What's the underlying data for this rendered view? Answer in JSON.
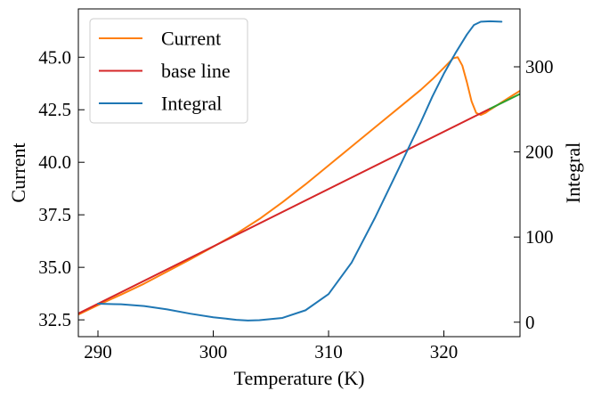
{
  "chart_data": {
    "type": "line",
    "xlabel": "Temperature (K)",
    "ylabel_left": "Current",
    "ylabel_right": "Integral",
    "xlim": [
      288.3,
      326.6
    ],
    "ylim_left": [
      31.7,
      47.3
    ],
    "ylim_right": [
      -17,
      368
    ],
    "x_ticks": [
      290,
      300,
      310,
      320
    ],
    "y_ticks_left": [
      32.5,
      35.0,
      37.5,
      40.0,
      42.5,
      45.0
    ],
    "y_ticks_right": [
      0,
      100,
      200,
      300
    ],
    "x_tick_labels": [
      "290",
      "300",
      "310",
      "320"
    ],
    "y_tick_labels_left": [
      "32.5",
      "35.0",
      "37.5",
      "40.0",
      "42.5",
      "45.0"
    ],
    "y_tick_labels_right": [
      "0",
      "100",
      "200",
      "300"
    ],
    "grid": false,
    "legend_position": "top-left",
    "series": [
      {
        "name": "Current",
        "axis": "left",
        "color": "#ff7f0e",
        "points": [
          [
            288.3,
            32.75
          ],
          [
            290,
            33.2
          ],
          [
            292,
            33.7
          ],
          [
            294,
            34.22
          ],
          [
            296,
            34.8
          ],
          [
            298,
            35.38
          ],
          [
            300,
            35.98
          ],
          [
            302,
            36.6
          ],
          [
            304,
            37.3
          ],
          [
            306,
            38.1
          ],
          [
            308,
            38.95
          ],
          [
            310,
            39.85
          ],
          [
            312,
            40.75
          ],
          [
            314,
            41.65
          ],
          [
            316,
            42.55
          ],
          [
            318,
            43.45
          ],
          [
            319,
            43.95
          ],
          [
            320,
            44.5
          ],
          [
            320.8,
            44.95
          ],
          [
            321.2,
            45.0
          ],
          [
            321.6,
            44.6
          ],
          [
            322,
            43.8
          ],
          [
            322.4,
            42.9
          ],
          [
            322.8,
            42.35
          ],
          [
            323.2,
            42.25
          ],
          [
            323.6,
            42.35
          ],
          [
            324,
            42.5
          ],
          [
            325,
            42.85
          ],
          [
            326,
            43.2
          ],
          [
            326.6,
            43.4
          ]
        ]
      },
      {
        "name": "base line",
        "axis": "left",
        "color": "#d62728",
        "points": [
          [
            288.3,
            32.8
          ],
          [
            324.0,
            42.55
          ]
        ]
      },
      {
        "name": "",
        "axis": "left",
        "color": "#2ca02c",
        "points": [
          [
            324.0,
            42.55
          ],
          [
            326.6,
            43.25
          ]
        ]
      },
      {
        "name": "Integral",
        "axis": "right",
        "color": "#1f77b4",
        "points": [
          [
            290,
            21.7
          ],
          [
            292,
            21.0
          ],
          [
            294,
            19.0
          ],
          [
            296,
            15.0
          ],
          [
            298,
            10.0
          ],
          [
            300,
            5.8
          ],
          [
            302,
            2.8
          ],
          [
            303,
            2.0
          ],
          [
            304,
            2.3
          ],
          [
            306,
            5.0
          ],
          [
            308,
            14.0
          ],
          [
            310,
            33.0
          ],
          [
            312,
            70.0
          ],
          [
            314,
            122.0
          ],
          [
            316,
            178.0
          ],
          [
            318,
            235.0
          ],
          [
            319,
            265.0
          ],
          [
            320,
            292.0
          ],
          [
            321,
            316.0
          ],
          [
            322,
            338.0
          ],
          [
            322.6,
            349.0
          ],
          [
            323.2,
            353.0
          ],
          [
            324,
            353.5
          ],
          [
            325,
            353.0
          ]
        ]
      }
    ],
    "legend": [
      {
        "label": "Current",
        "color": "#ff7f0e"
      },
      {
        "label": "base line",
        "color": "#d62728"
      },
      {
        "label": "Integral",
        "color": "#1f77b4"
      }
    ]
  }
}
